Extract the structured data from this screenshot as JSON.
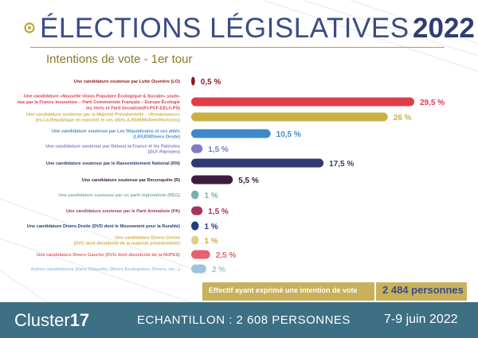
{
  "header": {
    "title_main": "ÉLECTIONS LÉGISLATIVES",
    "title_year": "2022",
    "subtitle": "Intentions de vote - 1er tour"
  },
  "chart_data": {
    "type": "bar",
    "orientation": "horizontal",
    "title": "ÉLECTIONS LÉGISLATIVES 2022",
    "subtitle": "Intentions de vote - 1er tour",
    "xlim": [
      0,
      29.5
    ],
    "grid": false,
    "value_suffix": " %",
    "categories": [
      [
        "Une candidature soutenue par Lutte Ouvrière (LO)"
      ],
      [
        "Une candidature «Nouvelle Union Populaire Écologique & Sociale» soute-",
        "nue par la France Insoumise – Parti Communiste Français – Europe Écologie",
        "les Verts et Parti Socialiste(FI-PCF-EELV-PS)"
      ],
      [
        "Une candidature soutenue par la Majorité Présidentielle : «Renaissance»",
        "(ex-La République en marche) et ses alliés (LREM/MoDem/Horizons)"
      ],
      [
        "Une candidature soutenue par Les Républicains et ses alliés",
        "(LR/UDI/Divers Droite)"
      ],
      [
        "Une candidature soutenue par Debout la France et les Patriotes",
        "(DLF-Patriotes)"
      ],
      [
        "Une candidature soutenue par le Rassemblement National (RN)"
      ],
      [
        "Une candidature soutenue par Reconquête (R)"
      ],
      [
        "Une candidature soutenue par un parti régionaliste (REG)"
      ],
      [
        "Une candidature soutenue par le Parti Animaliste (PA)"
      ],
      [
        "Une candidature Divers Droite (DVD dont le Mouvement pour la Ruralité)"
      ],
      [
        "Une candidature Divers Centre",
        "(DVC dont dissidents de la majorité présidentielle)"
      ],
      [
        "Une candidature Divers Gauche (DVG dont dissidents de la NUPES)"
      ],
      [
        "Autres candidatures (Sans Etiquette, Divers Ecologistes, Divers, etc...)"
      ]
    ],
    "values": [
      0.5,
      29.5,
      26,
      10.5,
      1.5,
      17.5,
      5.5,
      1,
      1.5,
      1,
      1,
      2.5,
      2
    ],
    "labels": [
      "0,5 %",
      "29,5 %",
      "26 %",
      "10,5 %",
      "1,5 %",
      "17,5 %",
      "5,5 %",
      "1 %",
      "1,5 %",
      "1 %",
      "1 %",
      "2,5 %",
      "2 %"
    ],
    "colors": [
      "#8b1a1a",
      "#e03d4a",
      "#c9b043",
      "#3f88c8",
      "#7d7bc4",
      "#2f3a73",
      "#3e1d40",
      "#79b0ab",
      "#a8325e",
      "#1f3d78",
      "#e0cf86",
      "#e8606d",
      "#9cc3e0"
    ]
  },
  "footer": {
    "sample_label": "Effectif ayant exprimé une intention de vote",
    "sample_value": "2 484 personnes"
  },
  "bottom": {
    "brand_prefix": "Cluster",
    "brand_number": "17",
    "sample": "ECHANTILLON : 2 608 PERSONNES",
    "dates": "7-9 juin 2022"
  }
}
